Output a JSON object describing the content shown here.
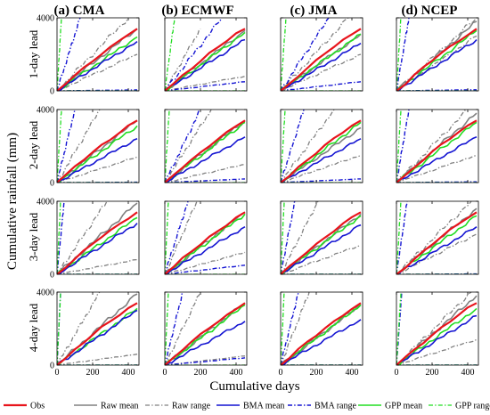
{
  "figure": {
    "column_titles": [
      "(a) CMA",
      "(b) ECMWF",
      "(c) JMA",
      "(d) NCEP"
    ],
    "row_labels": [
      "1-day lead",
      "2-day lead",
      "3-day lead",
      "4-day lead"
    ],
    "xlabel": "Cumulative days",
    "ylabel": "Cumulative rainfall (mm)"
  },
  "legend": [
    {
      "label": "Obs",
      "color": "#e8141c",
      "dash": "solid",
      "width": 2.2
    },
    {
      "label": "Raw mean",
      "color": "#808080",
      "dash": "solid",
      "width": 1.6
    },
    {
      "label": "Raw range",
      "color": "#808080",
      "dash": "dashdot",
      "width": 1.3
    },
    {
      "label": "BMA mean",
      "color": "#1414d2",
      "dash": "solid",
      "width": 1.6
    },
    {
      "label": "BMA range",
      "color": "#1414d2",
      "dash": "dashdot",
      "width": 1.4
    },
    {
      "label": "GPP mean",
      "color": "#22dd22",
      "dash": "solid",
      "width": 1.6
    },
    {
      "label": "GPP range",
      "color": "#22dd22",
      "dash": "dashdot",
      "width": 1.3
    }
  ],
  "chart_data": {
    "type": "line",
    "layout": "4x4 grid of subplots (rows = lead time, columns = NWP centre)",
    "xlim": [
      0,
      460
    ],
    "ylim": [
      0,
      4000
    ],
    "xticks": [
      0,
      200,
      400
    ],
    "yticks": [
      0,
      4000
    ],
    "x_points": [
      0,
      50,
      100,
      150,
      200,
      250,
      300,
      350,
      400,
      450
    ],
    "obs": [
      0,
      400,
      850,
      1250,
      1650,
      2050,
      2400,
      2750,
      3100,
      3400
    ],
    "panels": [
      {
        "lead": "1-day lead",
        "centre": "(a) CMA",
        "series": {
          "raw_mean": 3400,
          "raw_lo": 2000,
          "raw_hi": 4000,
          "raw_hi_x": 400,
          "bma_mean": 2700,
          "bma_lo": 50,
          "bma_hi": 4000,
          "bma_hi_x": 130,
          "gpp_mean": 2950,
          "gpp_lo": 0,
          "gpp_hi": 4000,
          "gpp_hi_x": 25
        }
      },
      {
        "lead": "1-day lead",
        "centre": "(b) ECMWF",
        "series": {
          "raw_mean": 3300,
          "raw_lo": 800,
          "raw_hi": 3400,
          "raw_hi_x": 200,
          "bma_mean": 2800,
          "bma_lo": 500,
          "bma_hi": 4000,
          "bma_hi_x": 320,
          "gpp_mean": 3200,
          "gpp_lo": 0,
          "gpp_hi": 4000,
          "gpp_hi_x": 55
        }
      },
      {
        "lead": "1-day lead",
        "centre": "(c) JMA",
        "series": {
          "raw_mean": 3100,
          "raw_lo": 2000,
          "raw_hi": 4000,
          "raw_hi_x": 380,
          "bma_mean": 2600,
          "bma_lo": 500,
          "bma_hi": 4000,
          "bma_hi_x": 270,
          "gpp_mean": 3100,
          "gpp_lo": 0,
          "gpp_hi": 4000,
          "gpp_hi_x": 30
        }
      },
      {
        "lead": "1-day lead",
        "centre": "(d) NCEP",
        "series": {
          "raw_mean": 3800,
          "raw_lo": 3000,
          "raw_hi": 4000,
          "raw_hi_x": 450,
          "bma_mean": 2800,
          "bma_lo": 60,
          "bma_hi": 4000,
          "bma_hi_x": 70,
          "gpp_mean": 3300,
          "gpp_lo": 0,
          "gpp_hi": 4000,
          "gpp_hi_x": 25
        }
      },
      {
        "lead": "2-day lead",
        "centre": "(a) CMA",
        "series": {
          "raw_mean": 3400,
          "raw_lo": 1400,
          "raw_hi": 4000,
          "raw_hi_x": 240,
          "bma_mean": 2400,
          "bma_lo": 20,
          "bma_hi": 4000,
          "bma_hi_x": 100,
          "gpp_mean": 3100,
          "gpp_lo": 0,
          "gpp_hi": 4000,
          "gpp_hi_x": 25
        }
      },
      {
        "lead": "2-day lead",
        "centre": "(b) ECMWF",
        "series": {
          "raw_mean": 3400,
          "raw_lo": 1000,
          "raw_hi": 4000,
          "raw_hi_x": 260,
          "bma_mean": 2500,
          "bma_lo": 200,
          "bma_hi": 4000,
          "bma_hi_x": 200,
          "gpp_mean": 3300,
          "gpp_lo": 0,
          "gpp_hi": 4000,
          "gpp_hi_x": 25
        }
      },
      {
        "lead": "2-day lead",
        "centre": "(c) JMA",
        "series": {
          "raw_mean": 3000,
          "raw_lo": 1500,
          "raw_hi": 4000,
          "raw_hi_x": 300,
          "bma_mean": 2400,
          "bma_lo": 200,
          "bma_hi": 4000,
          "bma_hi_x": 130,
          "gpp_mean": 3300,
          "gpp_lo": 0,
          "gpp_hi": 4000,
          "gpp_hi_x": 25
        }
      },
      {
        "lead": "2-day lead",
        "centre": "(d) NCEP",
        "series": {
          "raw_mean": 3800,
          "raw_lo": 1500,
          "raw_hi": 4000,
          "raw_hi_x": 400,
          "bma_mean": 2500,
          "bma_lo": 40,
          "bma_hi": 4000,
          "bma_hi_x": 70,
          "gpp_mean": 3300,
          "gpp_lo": 0,
          "gpp_hi": 4000,
          "gpp_hi_x": 25
        }
      },
      {
        "lead": "3-day lead",
        "centre": "(a) CMA",
        "series": {
          "raw_mean": 3900,
          "raw_lo": 800,
          "raw_hi": 4000,
          "raw_hi_x": 280,
          "bma_mean": 2800,
          "bma_lo": 0,
          "bma_hi": 4000,
          "bma_hi_x": 40,
          "gpp_mean": 3100,
          "gpp_lo": 0,
          "gpp_hi": 4000,
          "gpp_hi_x": 20
        }
      },
      {
        "lead": "3-day lead",
        "centre": "(b) ECMWF",
        "series": {
          "raw_mean": 3400,
          "raw_lo": 1200,
          "raw_hi": 4000,
          "raw_hi_x": 180,
          "bma_mean": 2600,
          "bma_lo": 500,
          "bma_hi": 4000,
          "bma_hi_x": 130,
          "gpp_mean": 3300,
          "gpp_lo": 0,
          "gpp_hi": 4000,
          "gpp_hi_x": 20
        }
      },
      {
        "lead": "3-day lead",
        "centre": "(c) JMA",
        "series": {
          "raw_mean": 3300,
          "raw_lo": 1600,
          "raw_hi": 4000,
          "raw_hi_x": 210,
          "bma_mean": 2700,
          "bma_lo": 0,
          "bma_hi": 4000,
          "bma_hi_x": 80,
          "gpp_mean": 3200,
          "gpp_lo": 0,
          "gpp_hi": 4000,
          "gpp_hi_x": 20
        }
      },
      {
        "lead": "3-day lead",
        "centre": "(d) NCEP",
        "series": {
          "raw_mean": 3600,
          "raw_lo": 2200,
          "raw_hi": 4000,
          "raw_hi_x": 420,
          "bma_mean": 2600,
          "bma_lo": 20,
          "bma_hi": 4000,
          "bma_hi_x": 60,
          "gpp_mean": 3200,
          "gpp_lo": 0,
          "gpp_hi": 4000,
          "gpp_hi_x": 25
        }
      },
      {
        "lead": "4-day lead",
        "centre": "(a) CMA",
        "series": {
          "raw_mean": 3900,
          "raw_lo": 600,
          "raw_hi": 4000,
          "raw_hi_x": 240,
          "bma_mean": 3000,
          "bma_lo": 0,
          "bma_hi": 4000,
          "bma_hi_x": 20,
          "gpp_mean": 3100,
          "gpp_lo": 0,
          "gpp_hi": 4000,
          "gpp_hi_x": 20
        }
      },
      {
        "lead": "4-day lead",
        "centre": "(b) ECMWF",
        "series": {
          "raw_mean": 3400,
          "raw_lo": 500,
          "raw_hi": 4000,
          "raw_hi_x": 200,
          "bma_mean": 2400,
          "bma_lo": 400,
          "bma_hi": 4000,
          "bma_hi_x": 100,
          "gpp_mean": 3300,
          "gpp_lo": 0,
          "gpp_hi": 4000,
          "gpp_hi_x": 20
        }
      },
      {
        "lead": "4-day lead",
        "centre": "(c) JMA",
        "series": {
          "raw_mean": 3300,
          "raw_lo": 0,
          "raw_hi": 4000,
          "raw_hi_x": 160,
          "bma_mean": 2500,
          "bma_lo": 0,
          "bma_hi": 4000,
          "bma_hi_x": 100,
          "gpp_mean": 3300,
          "gpp_lo": 0,
          "gpp_hi": 4000,
          "gpp_hi_x": 20
        }
      },
      {
        "lead": "4-day lead",
        "centre": "(d) NCEP",
        "series": {
          "raw_mean": 3800,
          "raw_lo": 1400,
          "raw_hi": 4000,
          "raw_hi_x": 420,
          "bma_mean": 2700,
          "bma_lo": 0,
          "bma_hi": 4000,
          "bma_hi_x": 30,
          "gpp_mean": 3100,
          "gpp_lo": 0,
          "gpp_hi": 4000,
          "gpp_hi_x": 25
        }
      }
    ]
  }
}
